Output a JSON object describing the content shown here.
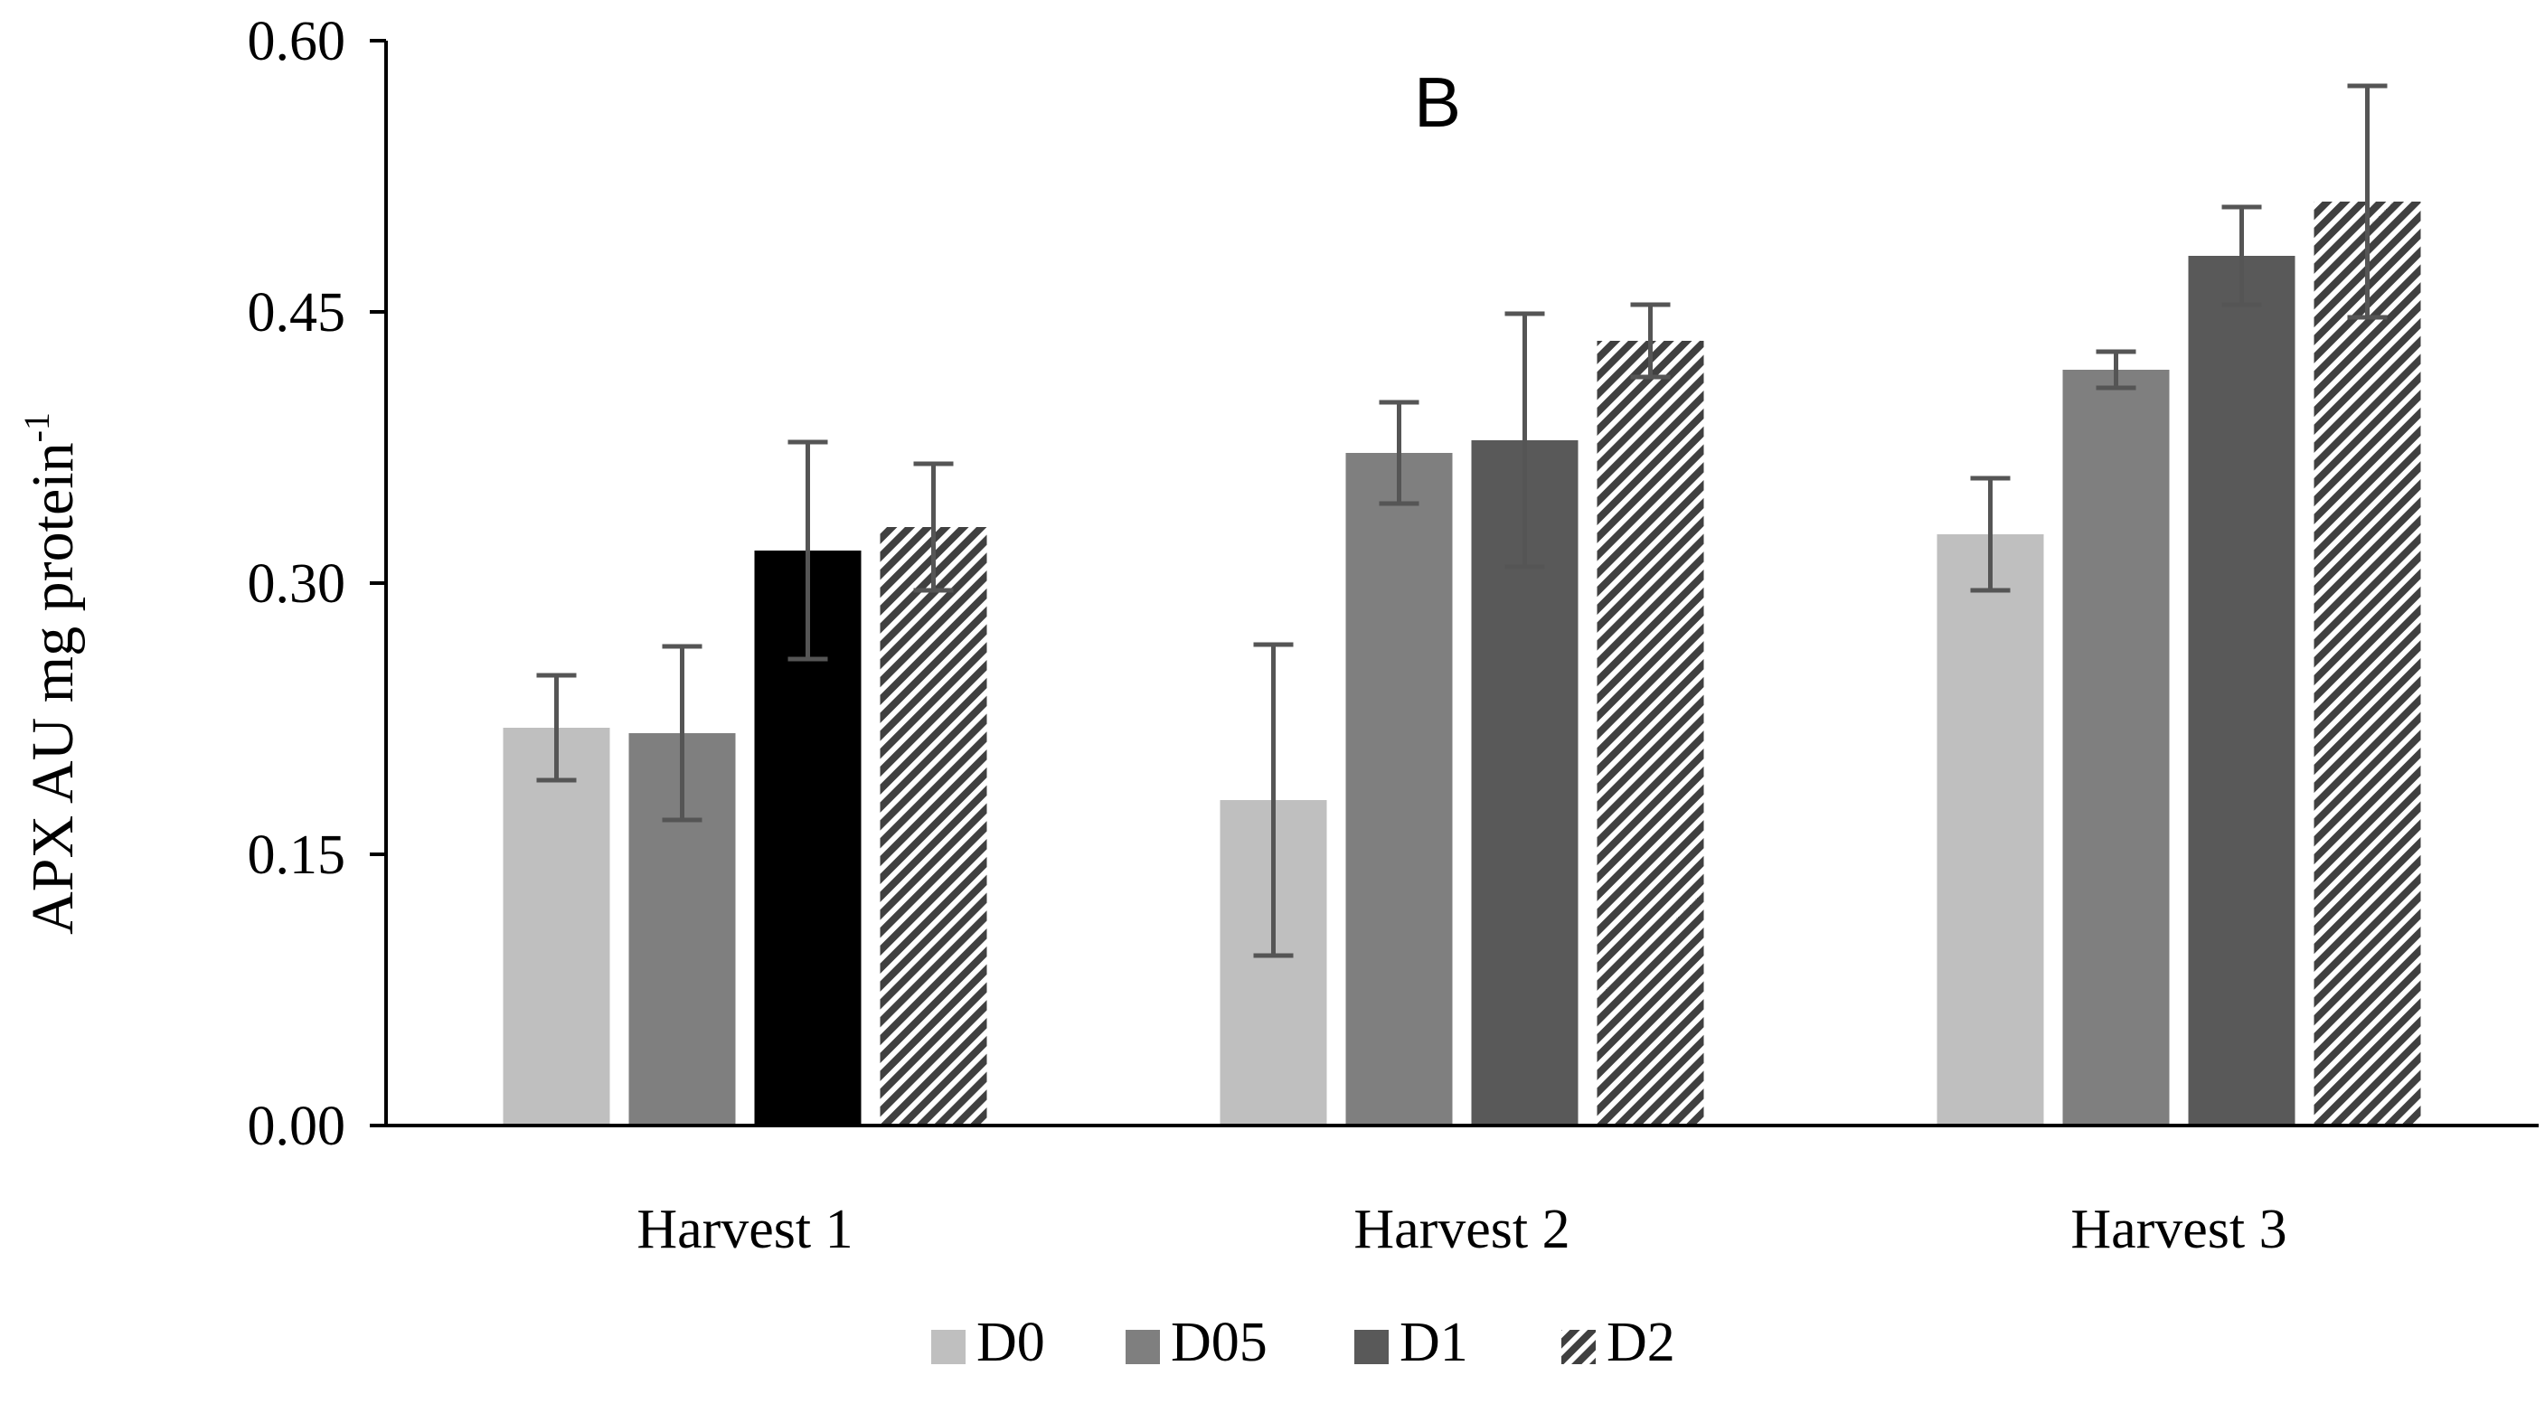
{
  "chart_data": {
    "type": "bar",
    "panel_label": "B",
    "title": "",
    "xlabel": "",
    "ylabel": "APX AU mg protein",
    "ylabel_superscript": "-1",
    "ylim": [
      0,
      0.6
    ],
    "yticks": [
      0,
      0.15,
      0.3,
      0.45,
      0.6
    ],
    "ytick_labels": [
      "0.00",
      "0.15",
      "0.30",
      "0.45",
      "0.60"
    ],
    "grid": false,
    "legend_position": "bottom",
    "categories": [
      "Harvest 1",
      "Harvest 2",
      "Harvest 3"
    ],
    "series": [
      {
        "name": "D0",
        "values": [
          0.22,
          0.18,
          0.327
        ],
        "errors": [
          0.029,
          0.086,
          0.031
        ],
        "color": "#bfbfbf",
        "pattern": "solid"
      },
      {
        "name": "D05",
        "values": [
          0.217,
          0.372,
          0.418
        ],
        "errors": [
          0.048,
          0.028,
          0.01
        ],
        "color": "#7f7f7f",
        "pattern": "solid"
      },
      {
        "name": "D1",
        "values": [
          0.318,
          0.379,
          0.481
        ],
        "errors": [
          0.06,
          0.07,
          0.027
        ],
        "color": "#595959",
        "color_overrides": [
          "#000000",
          null,
          null
        ],
        "pattern": "solid"
      },
      {
        "name": "D2",
        "values": [
          0.331,
          0.434,
          0.511
        ],
        "errors": [
          0.035,
          0.02,
          0.064
        ],
        "color": "#404040",
        "pattern": "diagonal-stripes"
      }
    ]
  }
}
